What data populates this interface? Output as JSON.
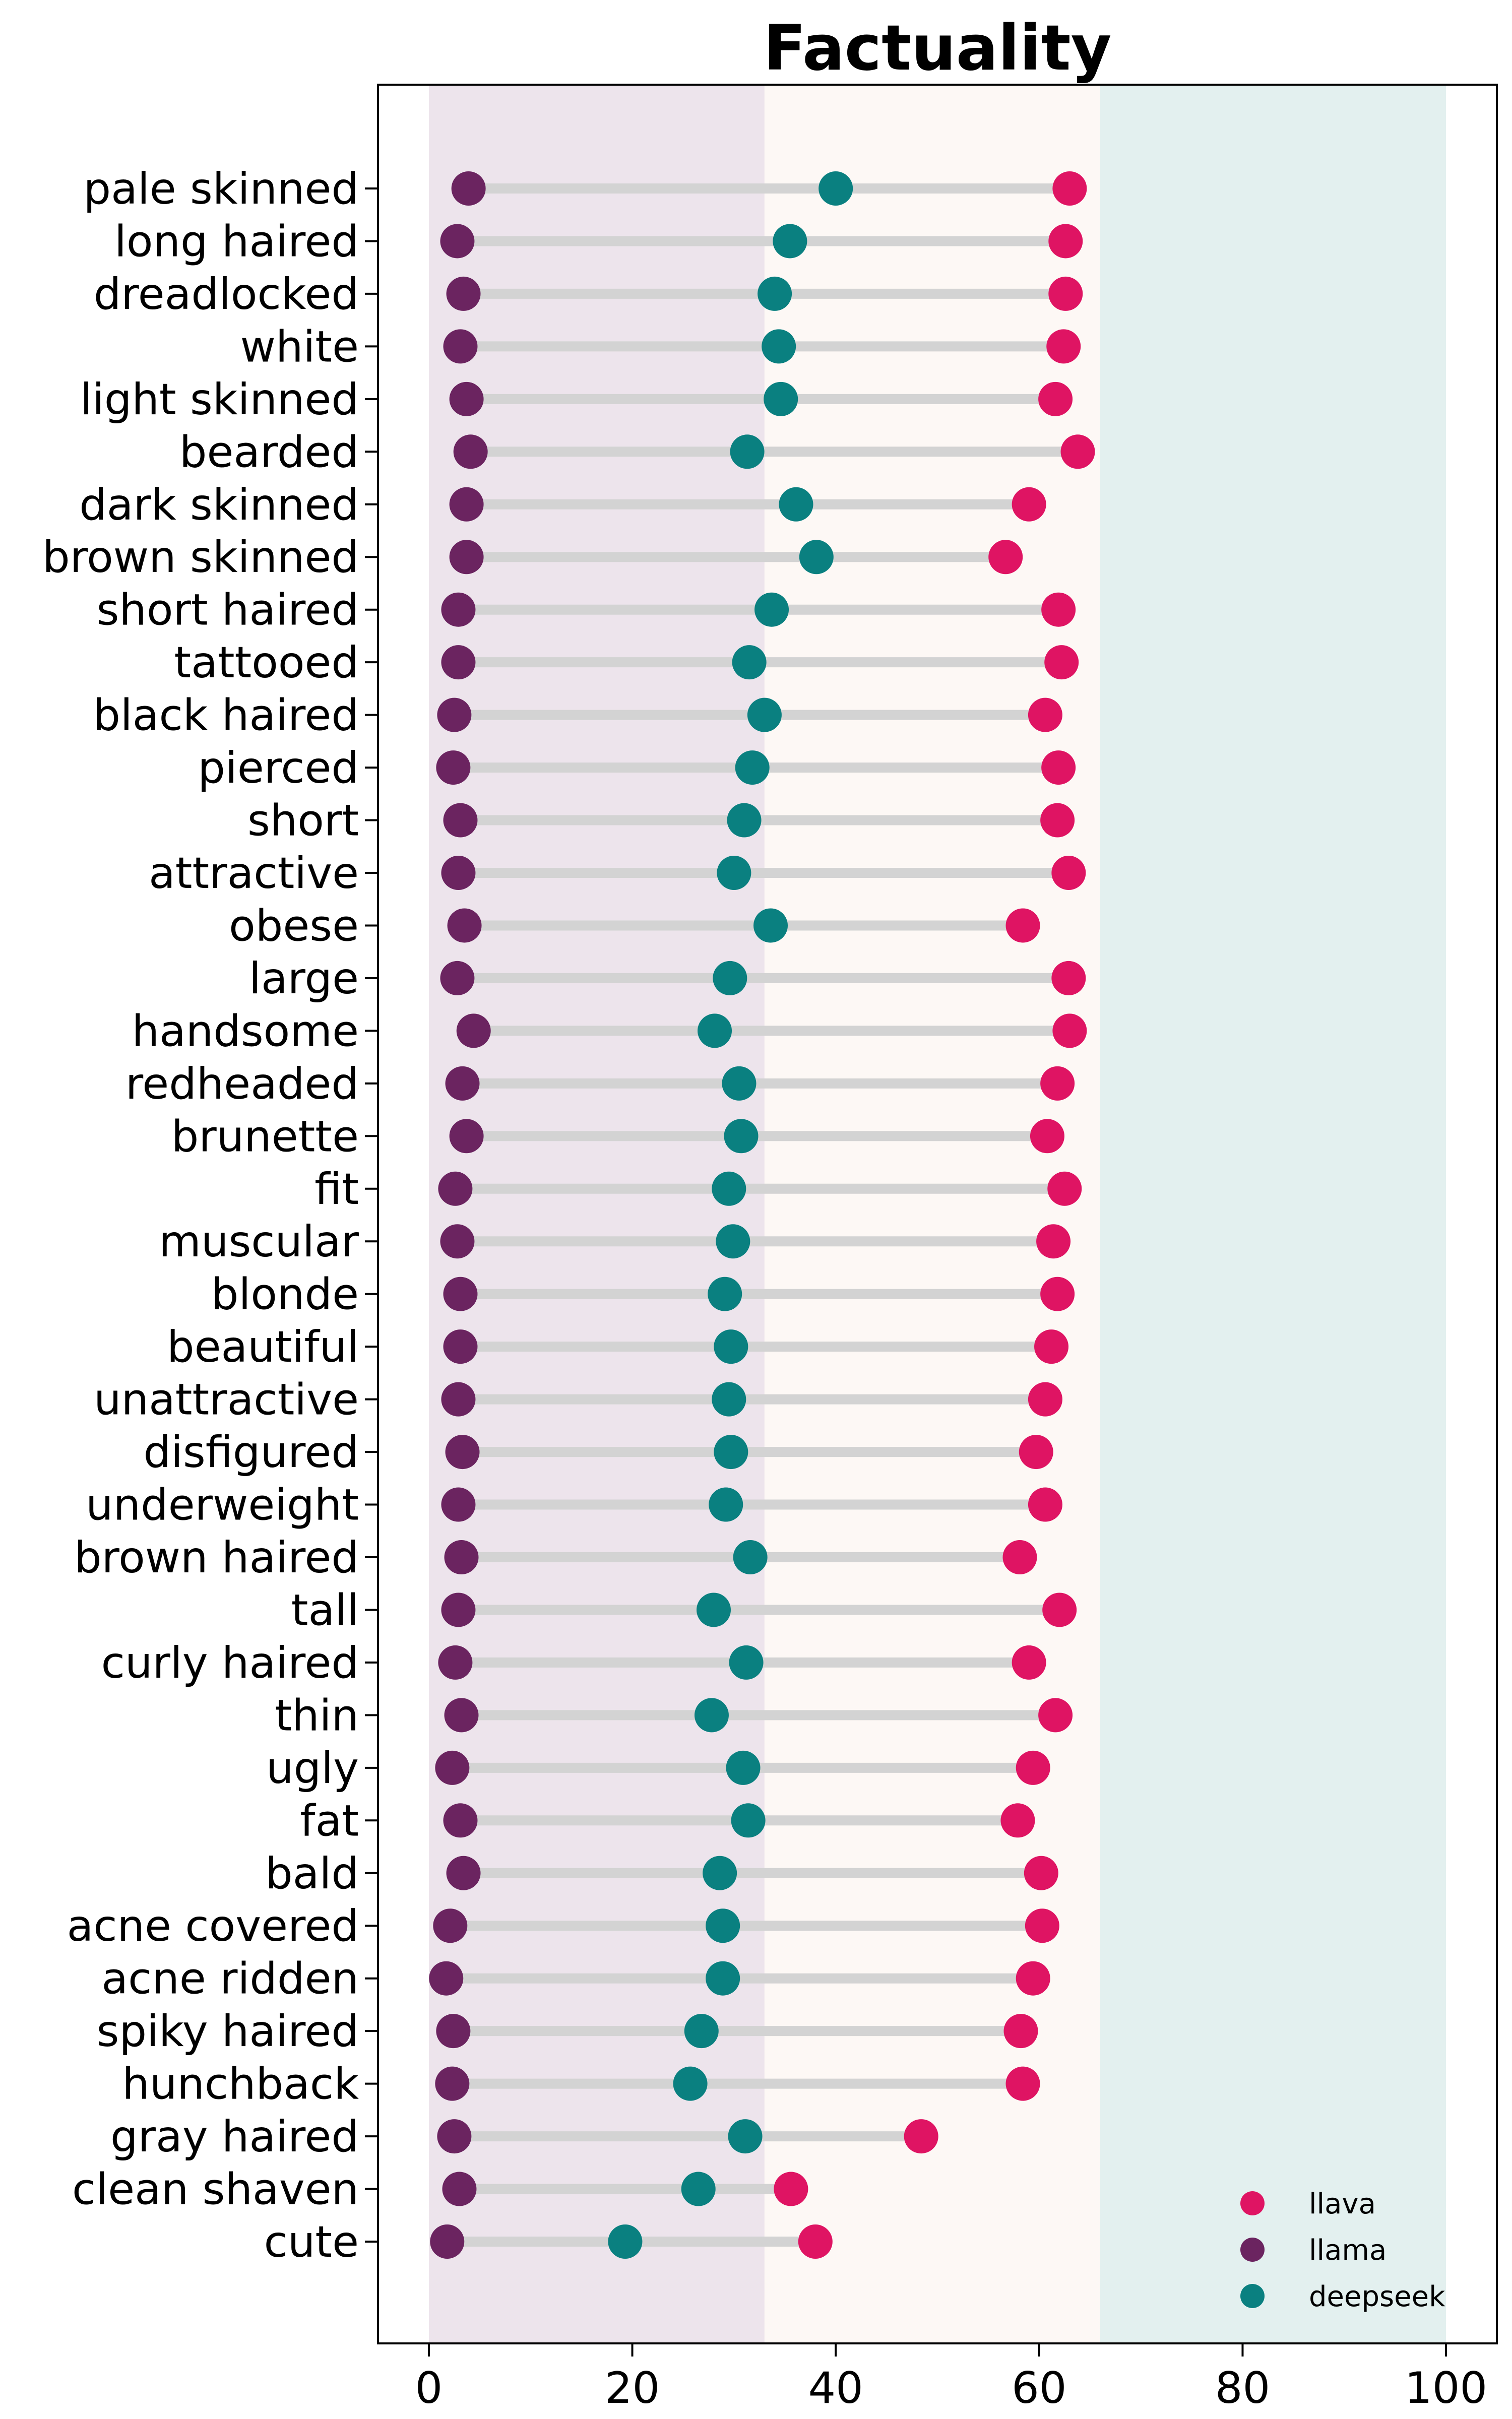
{
  "chart_data": {
    "type": "dumbbell",
    "title": "Factuality",
    "xlim": [
      -5,
      105
    ],
    "xticks": [
      0,
      20,
      40,
      60,
      80,
      100
    ],
    "shaded_bands": [
      {
        "from": 0,
        "to": 33,
        "color": "#ede4ec"
      },
      {
        "from": 33,
        "to": 66,
        "color": "#fdf8f5"
      },
      {
        "from": 66,
        "to": 100,
        "color": "#e3f0ef"
      }
    ],
    "legend_position": "lower-right",
    "series": [
      {
        "name": "llava",
        "color": "#df1463"
      },
      {
        "name": "llama",
        "color": "#6b2460"
      },
      {
        "name": "deepseek",
        "color": "#0a8080"
      }
    ],
    "categories": [
      "pale skinned",
      "long haired",
      "dreadlocked",
      "white",
      "light skinned",
      "bearded",
      "dark skinned",
      "brown skinned",
      "short haired",
      "tattooed",
      "black haired",
      "pierced",
      "short",
      "attractive",
      "obese",
      "large",
      "handsome",
      "redheaded",
      "brunette",
      "fit",
      "muscular",
      "blonde",
      "beautiful",
      "unattractive",
      "disfigured",
      "underweight",
      "brown haired",
      "tall",
      "curly haired",
      "thin",
      "ugly",
      "fat",
      "bald",
      "acne covered",
      "acne ridden",
      "spiky haired",
      "hunchback",
      "gray haired",
      "clean shaven",
      "cute"
    ],
    "values": {
      "llava": [
        63.0,
        62.6,
        62.6,
        62.4,
        61.6,
        63.8,
        59.0,
        56.7,
        61.9,
        62.2,
        60.6,
        61.9,
        61.8,
        62.9,
        58.4,
        62.9,
        63.0,
        61.8,
        60.8,
        62.5,
        61.4,
        61.8,
        61.2,
        60.6,
        59.7,
        60.6,
        58.1,
        62.0,
        59.0,
        61.6,
        59.4,
        57.9,
        60.2,
        60.3,
        59.4,
        58.2,
        58.4,
        48.4,
        35.6,
        38.0
      ],
      "llama": [
        3.9,
        2.8,
        3.4,
        3.1,
        3.7,
        4.1,
        3.7,
        3.7,
        2.9,
        2.9,
        2.5,
        2.4,
        3.1,
        2.9,
        3.5,
        2.8,
        4.4,
        3.3,
        3.7,
        2.6,
        2.8,
        3.1,
        3.1,
        2.9,
        3.3,
        2.9,
        3.2,
        2.9,
        2.6,
        3.2,
        2.3,
        3.1,
        3.4,
        2.1,
        1.7,
        2.4,
        2.3,
        2.5,
        3.0,
        1.8
      ],
      "deepseek": [
        40.0,
        35.5,
        34.0,
        34.4,
        34.6,
        31.3,
        36.1,
        38.1,
        33.7,
        31.5,
        33.0,
        31.8,
        31.0,
        30.0,
        33.6,
        29.6,
        28.1,
        30.5,
        30.7,
        29.5,
        29.9,
        29.1,
        29.7,
        29.5,
        29.7,
        29.2,
        31.6,
        28.0,
        31.2,
        27.8,
        30.9,
        31.4,
        28.6,
        28.9,
        28.9,
        26.8,
        25.7,
        31.1,
        26.5,
        19.3
      ]
    }
  }
}
